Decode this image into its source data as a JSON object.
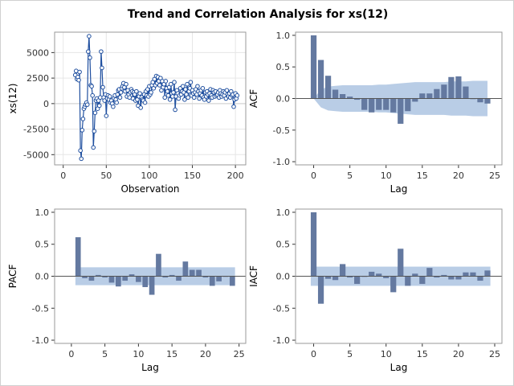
{
  "title": "Trend and Correlation Analysis for xs(12)",
  "colors": {
    "bar": "#6479a0",
    "band": "#b9cde6",
    "line": "#1f4f9f",
    "marker": "#1f4f9f",
    "frame": "#999999"
  },
  "chart_data": [
    {
      "panel": "series",
      "type": "line",
      "xlabel": "Observation",
      "ylabel": "xs(12)",
      "xlim": [
        -10,
        212
      ],
      "ylim": [
        -6000,
        7000
      ],
      "xticks": [
        "0",
        "50",
        "100",
        "150",
        "200"
      ],
      "yticks": [
        "-5000",
        "-2500",
        "0",
        "2500",
        "5000"
      ],
      "x_start": 14,
      "values": [
        2800,
        3200,
        2400,
        2600,
        2300,
        3100,
        -4600,
        -5400,
        -2600,
        -1500,
        -500,
        -300,
        -100,
        100,
        -100,
        5100,
        6600,
        4500,
        1800,
        1700,
        800,
        -4300,
        -2700,
        -900,
        300,
        500,
        -500,
        300,
        -200,
        600,
        5100,
        3500,
        1600,
        600,
        300,
        900,
        -1200,
        500,
        800,
        400,
        700,
        100,
        300,
        0,
        -300,
        500,
        800,
        400,
        100,
        900,
        1300,
        1400,
        600,
        1100,
        1500,
        1700,
        2000,
        1600,
        1200,
        1900,
        700,
        1300,
        900,
        600,
        1100,
        1400,
        1200,
        500,
        1100,
        900,
        300,
        1200,
        400,
        -200,
        700,
        1000,
        -400,
        600,
        400,
        300,
        900,
        100,
        1200,
        800,
        1400,
        700,
        1700,
        900,
        1100,
        1800,
        2100,
        1500,
        2400,
        1800,
        2700,
        2000,
        2600,
        2200,
        1800,
        2500,
        1300,
        2200,
        1600,
        1900,
        600,
        2200,
        1500,
        1200,
        800,
        1600,
        400,
        1900,
        1000,
        700,
        1100,
        2100,
        -600,
        700,
        1300,
        1000,
        500,
        800,
        1500,
        900,
        1200,
        1700,
        1100,
        400,
        1400,
        900,
        1900,
        600,
        1200,
        1500,
        2100,
        800,
        1300,
        1000,
        600,
        1100,
        1400,
        900,
        1700,
        1200,
        500,
        1000,
        1300,
        800,
        1500,
        600,
        400,
        1100,
        700,
        1200,
        900,
        300,
        1000,
        1400,
        800,
        600,
        1300,
        1100,
        700,
        1200,
        800,
        900,
        1100,
        600,
        1300,
        1000,
        700,
        900,
        1200,
        800,
        1100,
        500,
        1300,
        900,
        700,
        1000,
        600,
        1200,
        800,
        900,
        -300,
        400,
        1000,
        500,
        800
      ]
    },
    {
      "panel": "acf",
      "type": "bar",
      "xlabel": "Lag",
      "ylabel": "ACF",
      "xlim": [
        -2.5,
        26
      ],
      "ylim": [
        -1.05,
        1.05
      ],
      "xticks": [
        "0",
        "5",
        "10",
        "15",
        "20",
        "25"
      ],
      "yticks": [
        "-1.0",
        "-0.5",
        "0.0",
        "0.5",
        "1.0"
      ],
      "lags": [
        0,
        1,
        2,
        3,
        4,
        5,
        6,
        7,
        8,
        9,
        10,
        11,
        12,
        13,
        14,
        15,
        16,
        17,
        18,
        19,
        20,
        21,
        22,
        23,
        24
      ],
      "values": [
        1.0,
        0.61,
        0.36,
        0.14,
        0.07,
        0.03,
        -0.02,
        -0.18,
        -0.22,
        -0.18,
        -0.18,
        -0.22,
        -0.4,
        -0.2,
        -0.05,
        0.08,
        0.08,
        0.15,
        0.22,
        0.34,
        0.35,
        0.19,
        -0.01,
        -0.06,
        -0.08
      ],
      "band": [
        0,
        0.14,
        0.19,
        0.2,
        0.21,
        0.21,
        0.21,
        0.21,
        0.21,
        0.22,
        0.22,
        0.23,
        0.24,
        0.25,
        0.26,
        0.26,
        0.26,
        0.26,
        0.26,
        0.27,
        0.27,
        0.27,
        0.28,
        0.28,
        0.28
      ]
    },
    {
      "panel": "pacf",
      "type": "bar",
      "xlabel": "Lag",
      "ylabel": "PACF",
      "xlim": [
        -2.5,
        26
      ],
      "ylim": [
        -1.05,
        1.05
      ],
      "xticks": [
        "0",
        "5",
        "10",
        "15",
        "20",
        "25"
      ],
      "yticks": [
        "-1.0",
        "-0.5",
        "0.0",
        "0.5",
        "1.0"
      ],
      "lags": [
        1,
        2,
        3,
        4,
        5,
        6,
        7,
        8,
        9,
        10,
        11,
        12,
        13,
        14,
        15,
        16,
        17,
        18,
        19,
        20,
        21,
        22,
        23,
        24
      ],
      "values": [
        0.61,
        -0.03,
        -0.07,
        0.02,
        -0.02,
        -0.1,
        -0.16,
        -0.07,
        0.03,
        -0.09,
        -0.17,
        -0.29,
        0.35,
        -0.02,
        0.02,
        -0.07,
        0.23,
        0.1,
        0.1,
        -0.02,
        -0.15,
        -0.08,
        -0.01,
        -0.15
      ],
      "band": 0.14
    },
    {
      "panel": "iacf",
      "type": "bar",
      "xlabel": "Lag",
      "ylabel": "IACF",
      "xlim": [
        -2.5,
        26
      ],
      "ylim": [
        -1.05,
        1.05
      ],
      "xticks": [
        "0",
        "5",
        "10",
        "15",
        "20",
        "25"
      ],
      "yticks": [
        "-1.0",
        "-0.5",
        "0.0",
        "0.5",
        "1.0"
      ],
      "lags": [
        0,
        1,
        2,
        3,
        4,
        5,
        6,
        7,
        8,
        9,
        10,
        11,
        12,
        13,
        14,
        15,
        16,
        17,
        18,
        19,
        20,
        21,
        22,
        23,
        24
      ],
      "values": [
        1.0,
        -0.43,
        -0.04,
        -0.06,
        0.19,
        -0.02,
        -0.12,
        -0.01,
        0.07,
        0.04,
        -0.03,
        -0.25,
        0.43,
        -0.15,
        0.04,
        -0.12,
        0.13,
        -0.02,
        0.02,
        -0.05,
        -0.05,
        0.06,
        0.06,
        -0.07,
        0.09
      ],
      "band": 0.15
    }
  ]
}
